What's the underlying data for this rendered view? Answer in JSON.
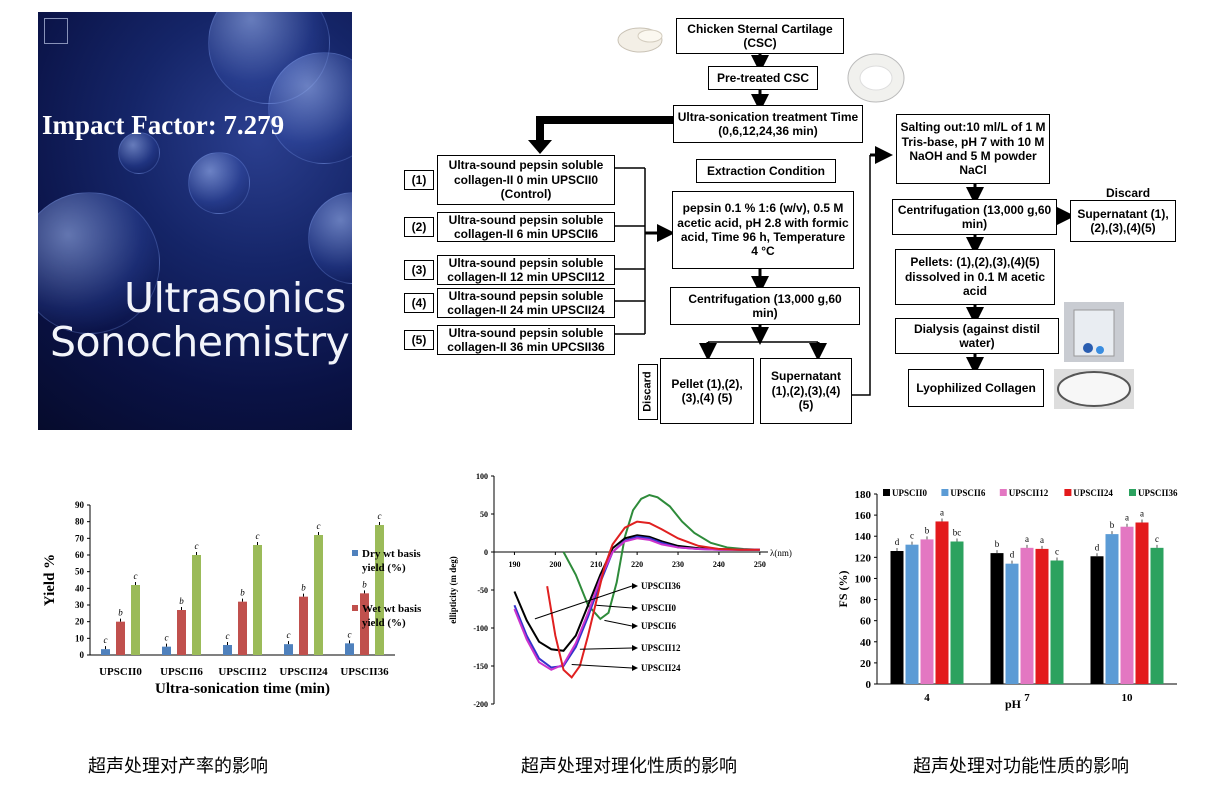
{
  "cover": {
    "impact_factor": "Impact Factor: 7.279",
    "journal_line1": "Ultrasonics",
    "journal_line2": "Sonochemistry"
  },
  "flow": {
    "csc": "Chicken Sternal Cartilage (CSC)",
    "pretreated": "Pre-treated CSC",
    "ultrasonication": "Ultra-sonication treatment Time (0,6,12,24,36 min)",
    "samples": [
      {
        "num": "(1)",
        "text": "Ultra-sound pepsin soluble collagen-II 0 min UPSCII0 (Control)"
      },
      {
        "num": "(2)",
        "text": "Ultra-sound pepsin soluble collagen-II 6 min UPSCII6"
      },
      {
        "num": "(3)",
        "text": "Ultra-sound pepsin soluble collagen-II 12 min UPSCII12"
      },
      {
        "num": "(4)",
        "text": "Ultra-sound pepsin soluble collagen-II 24 min UPSCII24"
      },
      {
        "num": "(5)",
        "text": "Ultra-sound pepsin soluble collagen-II 36 min UPCSII36"
      }
    ],
    "extraction_title": "Extraction Condition",
    "extraction_body": "pepsin 0.1 % 1:6 (w/v), 0.5 M acetic acid, pH 2.8 with formic acid, Time 96 h, Temperature 4 °C",
    "centrifugation1": "Centrifugation (13,000 g,60 min)",
    "pellet1": "Pellet (1),(2),(3),(4) (5)",
    "discard_v": "Discard",
    "supernatant1": "Supernatant (1),(2),(3),(4) (5)",
    "salting": "Salting out:10 ml/L of 1 M Tris-base, pH 7 with 10 M NaOH and 5 M powder NaCl",
    "centrifugation2": "Centrifugation (13,000 g,60 min)",
    "discard_h": "Discard",
    "supernatant2": "Supernatant (1),(2),(3),(4)(5)",
    "pellets2": "Pellets: (1),(2),(3),(4)(5) dissolved in 0.1 M acetic acid",
    "dialysis": "Dialysis (against distil water)",
    "lyophilized": "Lyophilized Collagen"
  },
  "chart_data": [
    {
      "type": "bar",
      "ylabel": "Yield %",
      "xlabel": "Ultra-sonication time (min)",
      "ylim": [
        0,
        90
      ],
      "yticks": [
        "0",
        "10",
        "20",
        "30",
        "40",
        "50",
        "60",
        "70",
        "80",
        "90"
      ],
      "categories": [
        "UPSCII0",
        "UPSCII6",
        "UPSCII12",
        "UPSCII24",
        "UPSCII36"
      ],
      "series": [
        {
          "name": "Dry wt basis yield (%)",
          "color": "#4f81bd",
          "values": [
            3.5,
            5,
            6,
            6.5,
            7
          ],
          "letters": [
            "c",
            "c",
            "c",
            "c",
            "c"
          ]
        },
        {
          "name": "Wet wt basis yield (%)",
          "color": "#c0504d",
          "values": [
            20,
            27,
            32,
            35,
            37
          ],
          "letters": [
            "b",
            "b",
            "b",
            "b",
            "b"
          ]
        },
        {
          "name": "",
          "color": "#9bbb59",
          "values": [
            42,
            60,
            66,
            72,
            78
          ],
          "letters": [
            "c",
            "c",
            "c",
            "c",
            "c"
          ]
        }
      ],
      "legend": [
        "Dry wt basis yield (%)",
        "Wet wt basis yield (%)"
      ]
    },
    {
      "type": "line",
      "ylabel": "ellipticity (m deg)",
      "xlabel": "λ(nm)",
      "xlim": [
        185,
        252
      ],
      "ylim": [
        -200,
        100
      ],
      "xticks": [
        "190",
        "200",
        "210",
        "220",
        "230",
        "240",
        "250"
      ],
      "yticks": [
        "100",
        "50",
        "0",
        "-50",
        "-100",
        "-150",
        "-200"
      ],
      "series": [
        {
          "name": "UPSCII36",
          "color": "#2e8b3a",
          "x": [
            202,
            205,
            208,
            211,
            213,
            215,
            217,
            219,
            221,
            223,
            225,
            228,
            231,
            234,
            238,
            242,
            246,
            250
          ],
          "y": [
            0,
            -30,
            -70,
            -88,
            -80,
            -40,
            20,
            55,
            70,
            75,
            72,
            60,
            40,
            25,
            12,
            6,
            4,
            3
          ]
        },
        {
          "name": "UPSCII0",
          "color": "#000000",
          "x": [
            190,
            193,
            196,
            199,
            202,
            205,
            208,
            211,
            214,
            217,
            220,
            223,
            226,
            230,
            235,
            240,
            245,
            250
          ],
          "y": [
            -52,
            -90,
            -118,
            -128,
            -130,
            -110,
            -70,
            -30,
            5,
            18,
            22,
            20,
            14,
            8,
            5,
            4,
            3,
            3
          ]
        },
        {
          "name": "UPSCII6",
          "color": "#3333cc",
          "x": [
            190,
            193,
            196,
            199,
            202,
            205,
            208,
            211,
            214,
            217,
            220,
            223,
            226,
            230,
            235,
            240,
            245,
            250
          ],
          "y": [
            -70,
            -110,
            -140,
            -152,
            -150,
            -125,
            -85,
            -40,
            0,
            15,
            20,
            18,
            12,
            6,
            4,
            3,
            3,
            3
          ]
        },
        {
          "name": "UPSCII12",
          "color": "#cc33cc",
          "x": [
            190,
            193,
            196,
            199,
            202,
            205,
            208,
            211,
            214,
            217,
            220,
            223,
            226,
            230,
            235,
            240,
            245,
            250
          ],
          "y": [
            -75,
            -115,
            -145,
            -155,
            -148,
            -120,
            -80,
            -35,
            0,
            14,
            18,
            16,
            10,
            6,
            4,
            3,
            3,
            3
          ]
        },
        {
          "name": "UPSCII24",
          "color": "#e02020",
          "x": [
            198,
            200,
            202,
            204,
            206,
            208,
            210,
            212,
            214,
            217,
            220,
            223,
            226,
            230,
            235,
            240,
            245,
            250
          ],
          "y": [
            -45,
            -110,
            -155,
            -165,
            -150,
            -110,
            -65,
            -20,
            10,
            32,
            40,
            38,
            30,
            18,
            8,
            4,
            3,
            3
          ]
        }
      ],
      "labels": [
        "UPSCII36",
        "UPSCII0",
        "UPSCII6",
        "UPSCII12",
        "UPSCII24"
      ]
    },
    {
      "type": "bar",
      "ylabel": "FS (%)",
      "xlabel": "pH",
      "ylim": [
        0,
        180
      ],
      "yticks": [
        "0",
        "20",
        "40",
        "60",
        "80",
        "100",
        "120",
        "140",
        "160",
        "180"
      ],
      "categories": [
        "4",
        "7",
        "10"
      ],
      "series": [
        {
          "name": "UPSCII0",
          "color": "#000000",
          "values": [
            126,
            124,
            121
          ],
          "letters": [
            "d",
            "b",
            "d"
          ]
        },
        {
          "name": "UPSCII6",
          "color": "#5b9bd5",
          "values": [
            132,
            114,
            142
          ],
          "letters": [
            "c",
            "d",
            "b"
          ]
        },
        {
          "name": "UPSCII12",
          "color": "#e377c2",
          "values": [
            137,
            129,
            149
          ],
          "letters": [
            "b",
            "a",
            "a"
          ]
        },
        {
          "name": "UPSCII24",
          "color": "#e31a1c",
          "values": [
            154,
            128,
            153
          ],
          "letters": [
            "a",
            "a",
            "a"
          ]
        },
        {
          "name": "UPSCII36",
          "color": "#2ca25f",
          "values": [
            135,
            117,
            129
          ],
          "letters": [
            "bc",
            "c",
            "c"
          ]
        }
      ]
    }
  ],
  "captions": [
    "超声处理对产率的影响",
    "超声处理对理化性质的影响",
    "超声处理对功能性质的影响"
  ]
}
